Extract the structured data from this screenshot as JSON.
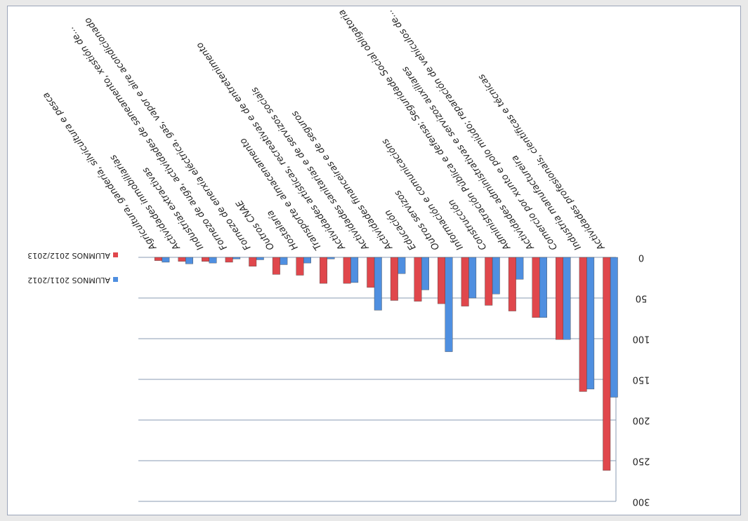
{
  "chart_data": {
    "type": "bar",
    "orientation": "rotated-180",
    "categories": [
      "Actividades profesionais, científicas e técnicas",
      "Industria manufactureira",
      "Comercio por xunto e polo miúdo; reparación de vehículos de...",
      "Actividades administrativas e servizos auxiliares",
      "Administración Pública e defensa; Seguridade Social obligatoria",
      "Construcción",
      "Información e comunicacións",
      "Outros servizos",
      "Educación",
      "Actividades financeiras e de seguros",
      "Actividades sanitarias e de servizos sociais",
      "Actividades artísticas, recreativas e de entretenimento",
      "Transporte e almacenamento",
      "Hostalaría",
      "Outros CNAE",
      "Fornezo de enerxía eléctrica, gas, vapor e aire acondicionado",
      "Fornezo de auga, actividades de saneamento, xestión de...",
      "Industrias extractivas",
      "Actividades inmobiliarias",
      "Agricultura, gandería, silvicultura e pesca"
    ],
    "series": [
      {
        "name": "ALUMNOS 2011/2012",
        "color": "#4f8fe0",
        "values": [
          172,
          162,
          101,
          74,
          27,
          45,
          50,
          116,
          40,
          20,
          65,
          31,
          2,
          7,
          9,
          3,
          2,
          7,
          8,
          6
        ]
      },
      {
        "name": "ALUMNOS 2012/2013",
        "color": "#e0474c",
        "values": [
          262,
          165,
          101,
          74,
          66,
          59,
          60,
          57,
          54,
          53,
          37,
          32,
          32,
          22,
          21,
          11,
          6,
          5,
          5,
          4
        ]
      }
    ],
    "yticks": [
      0,
      50,
      100,
      150,
      200,
      250,
      300
    ],
    "ylim": [
      0,
      300
    ],
    "grid": true,
    "legend": "bottom-left"
  }
}
